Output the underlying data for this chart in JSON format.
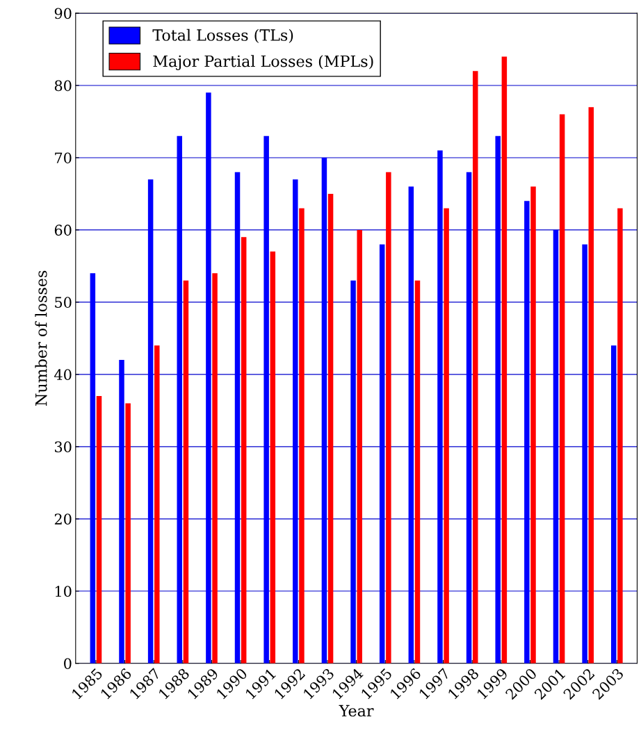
{
  "chart_data": {
    "type": "bar",
    "xlabel": "Year",
    "ylabel": "Number of losses",
    "categories": [
      "1985",
      "1986",
      "1987",
      "1988",
      "1989",
      "1990",
      "1991",
      "1992",
      "1993",
      "1994",
      "1995",
      "1996",
      "1997",
      "1998",
      "1999",
      "2000",
      "2001",
      "2002",
      "2003"
    ],
    "series": [
      {
        "name": "Total Losses (TLs)",
        "color": "#0000ff",
        "values": [
          54,
          42,
          67,
          73,
          79,
          68,
          73,
          67,
          70,
          53,
          58,
          66,
          71,
          68,
          73,
          64,
          60,
          58,
          44
        ]
      },
      {
        "name": "Major Partial Losses (MPLs)",
        "color": "#ff0000",
        "values": [
          37,
          36,
          44,
          53,
          54,
          59,
          57,
          63,
          65,
          60,
          68,
          53,
          63,
          82,
          84,
          66,
          76,
          77,
          63
        ]
      }
    ],
    "ylim": [
      0,
      90
    ],
    "yticks": [
      0,
      10,
      20,
      30,
      40,
      50,
      60,
      70,
      80,
      90
    ],
    "grid": "y",
    "legend": "top left"
  }
}
